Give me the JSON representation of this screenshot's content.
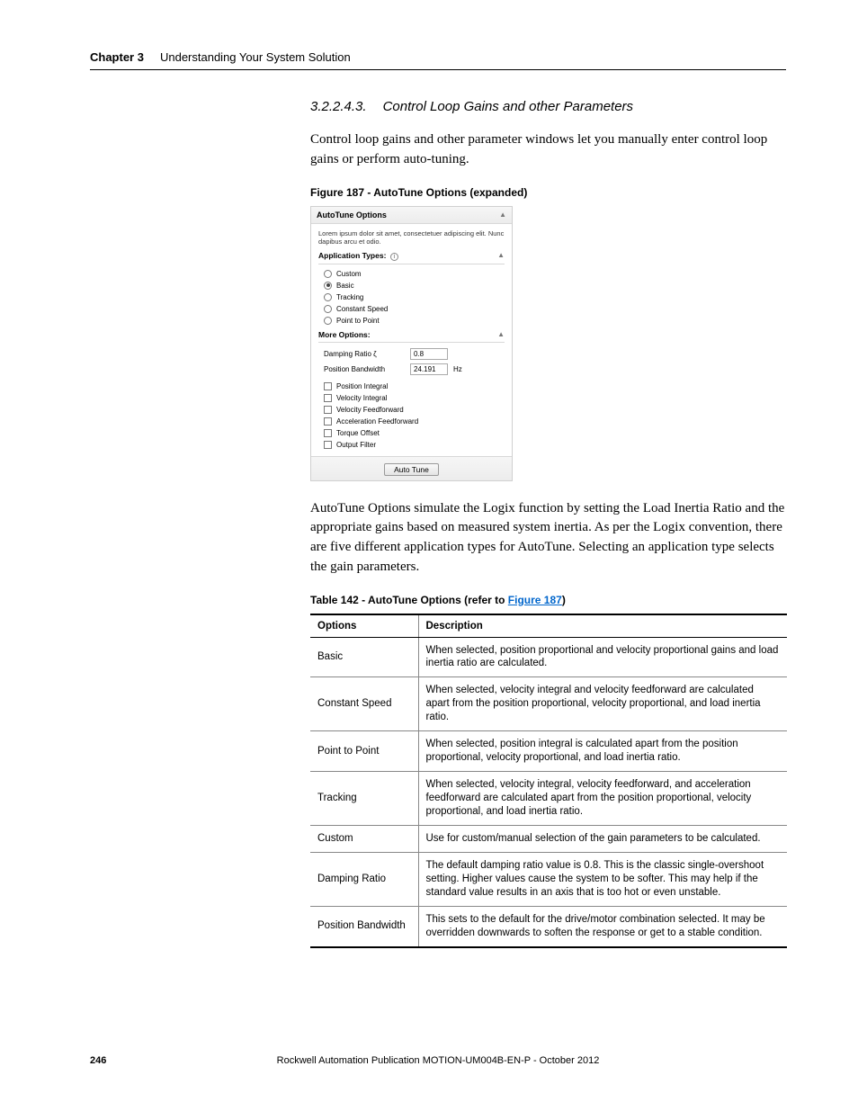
{
  "header": {
    "chapter_label": "Chapter 3",
    "chapter_title": "Understanding Your System Solution"
  },
  "section": {
    "number": "3.2.2.4.3.",
    "title": "Control Loop Gains and other Parameters"
  },
  "para1": "Control loop gains and other parameter windows let you manually enter control loop gains or perform auto-tuning.",
  "figure": {
    "caption": "Figure 187 - AutoTune Options (expanded)",
    "panel_title": "AutoTune Options",
    "panel_desc": "Lorem ipsum dolor sit amet, consectetuer adipiscing elit. Nunc dapibus arcu et odio.",
    "apptypes_label": "Application Types:",
    "radios": [
      {
        "label": "Custom",
        "checked": false
      },
      {
        "label": "Basic",
        "checked": true
      },
      {
        "label": "Tracking",
        "checked": false
      },
      {
        "label": "Constant Speed",
        "checked": false
      },
      {
        "label": "Point to Point",
        "checked": false
      }
    ],
    "more_label": "More Options:",
    "damping_label": "Damping Ratio   ζ",
    "damping_value": "0.8",
    "posbw_label": "Position Bandwidth",
    "posbw_value": "24.191",
    "posbw_unit": "Hz",
    "checks": [
      "Position Integral",
      "Velocity Integral",
      "Velocity Feedforward",
      "Acceleration Feedforward",
      "Torque Offset",
      "Output Filter"
    ],
    "button_label": "Auto Tune"
  },
  "para2": "AutoTune Options simulate the Logix function by setting the Load Inertia Ratio and the appropriate gains based on measured system inertia. As per the Logix convention, there are five different application types for AutoTune. Selecting an application type selects the gain parameters.",
  "table": {
    "caption_prefix": "Table 142 - AutoTune Options (refer to ",
    "caption_link": "Figure 187",
    "caption_suffix": ")",
    "col_option": "Options",
    "col_desc": "Description",
    "rows": [
      {
        "opt": "Basic",
        "desc": "When selected, position proportional and velocity proportional gains and load inertia ratio are calculated."
      },
      {
        "opt": "Constant Speed",
        "desc": "When selected, velocity integral and velocity feedforward are calculated apart from the position proportional, velocity proportional, and load inertia ratio."
      },
      {
        "opt": "Point to Point",
        "desc": "When selected, position integral is calculated apart from the position proportional, velocity proportional, and load inertia ratio."
      },
      {
        "opt": "Tracking",
        "desc": "When selected, velocity integral, velocity feedforward, and acceleration feedforward are calculated apart from the position proportional, velocity proportional, and load inertia ratio."
      },
      {
        "opt": "Custom",
        "desc": "Use for custom/manual selection of the gain parameters to be calculated."
      },
      {
        "opt": "Damping Ratio",
        "desc": "The default damping ratio value is 0.8. This is the classic single-overshoot setting. Higher values cause the system to be softer. This may help if the standard value results in an axis that is too hot or even unstable."
      },
      {
        "opt": "Position Bandwidth",
        "desc": "This sets to the default for the drive/motor combination selected. It may be overridden downwards to soften the response or get to a stable condition."
      }
    ]
  },
  "footer": {
    "page": "246",
    "pub": "Rockwell Automation Publication MOTION-UM004B-EN-P - October 2012"
  },
  "style": {
    "link_color": "#0066cc",
    "border_color": "#000000",
    "panel_border": "#d0d0d0"
  }
}
